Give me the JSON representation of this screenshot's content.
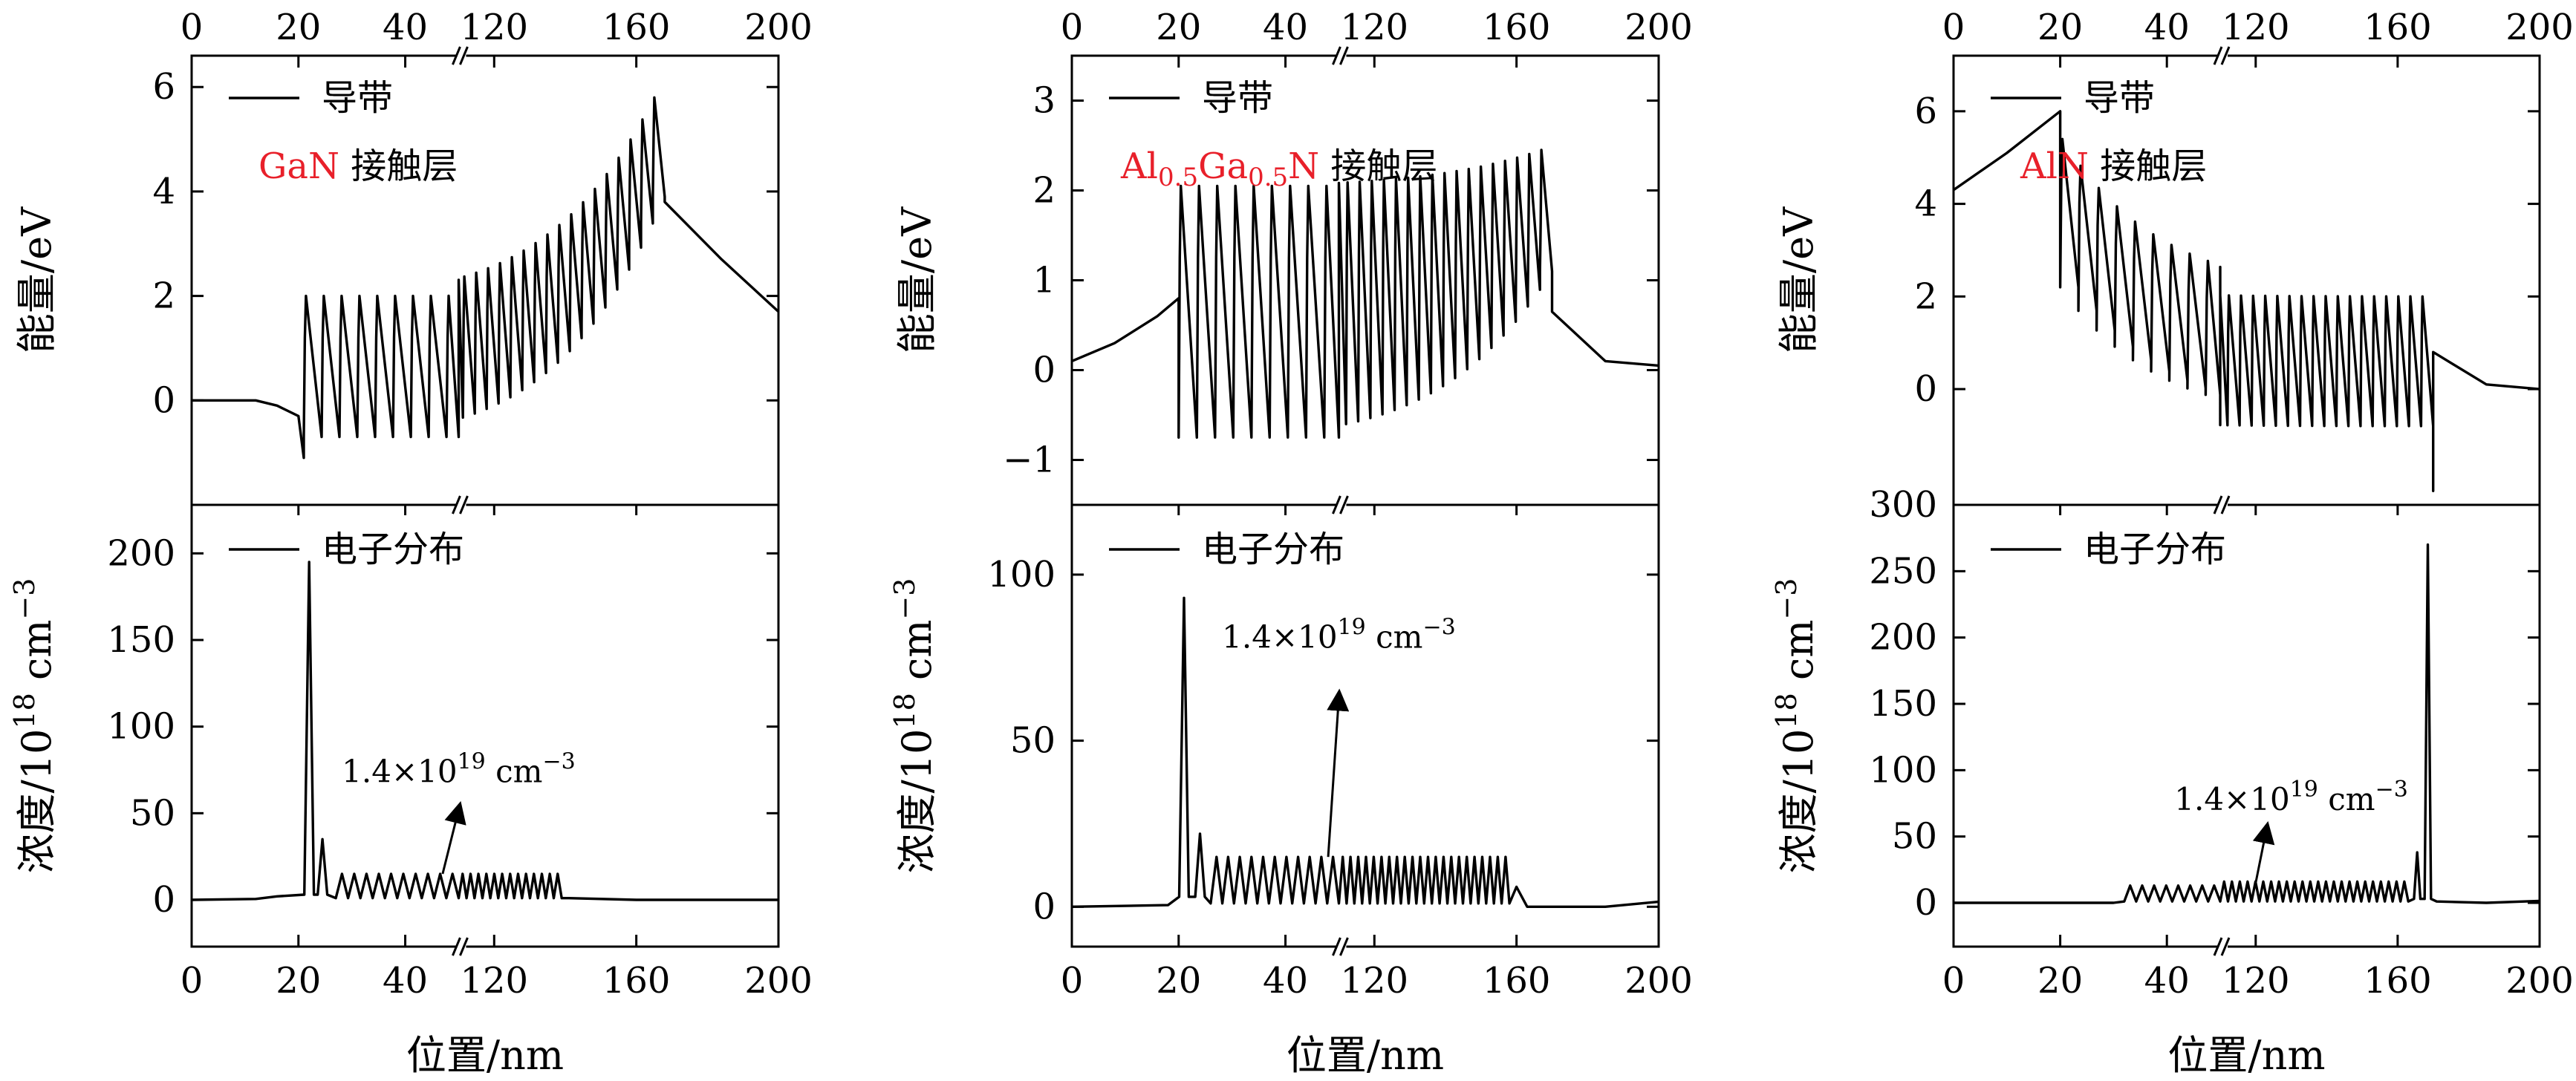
{
  "figure": {
    "x_axis_label": "位置/nm",
    "x_ticks": [
      {
        "label": "0",
        "value": 0
      },
      {
        "label": "20",
        "value": 20
      },
      {
        "label": "40",
        "value": 40
      },
      {
        "label": "120",
        "value": 120
      },
      {
        "label": "160",
        "value": 160
      },
      {
        "label": "200",
        "value": 200
      }
    ],
    "x_break_between": [
      50,
      110
    ],
    "top_ylabel": "能量/eV",
    "bottom_ylabel_main": "浓度/10",
    "bottom_ylabel_exp": "18",
    "bottom_ylabel_unit": " cm",
    "bottom_ylabel_unit_exp": "−3",
    "band_legend": "导带",
    "electron_legend": "电子分布",
    "annotation_main": "1.4×10",
    "annotation_exp": "19",
    "annotation_unit": " cm",
    "annotation_unit_exp": "−3"
  },
  "chart_data": [
    {
      "type": "line",
      "panel": "GaN contact layer",
      "label_red": "GaN",
      "label_black": " 接触层",
      "label_color": "#e8202a",
      "band": {
        "ylim": [
          -2.0,
          6.6
        ],
        "yticks": [
          0,
          2,
          4,
          6
        ],
        "points": [
          [
            0,
            0
          ],
          [
            12,
            0
          ],
          [
            16,
            -0.1
          ],
          [
            20,
            -0.3
          ],
          [
            21,
            -1.1
          ]
        ],
        "end_points": [
          [
            168,
            3.8
          ],
          [
            184,
            2.7
          ],
          [
            200,
            1.7
          ]
        ],
        "qw_start": 21,
        "qw_end": 168,
        "qw_count": 44,
        "qw_bottom": -0.7,
        "qw_top": 2.0,
        "qw_rise_end": 4.9,
        "qw_top_end": 5.8
      },
      "electrons": {
        "ylim": [
          -27,
          228
        ],
        "yticks": [
          0,
          50,
          100,
          150,
          200
        ],
        "baseline_points": [
          [
            0,
            0
          ],
          [
            12,
            0.5
          ],
          [
            16,
            2
          ]
        ],
        "peaks": [
          {
            "x": 22.0,
            "y": 195
          },
          {
            "x": 24.5,
            "y": 35
          }
        ],
        "wells_start": 27,
        "wells_end": 50,
        "wells_value": 15,
        "wells2_start": 110,
        "wells2_end": 139,
        "wells2_value": 15,
        "tail_points": [
          [
            141,
            1
          ],
          [
            160,
            0
          ],
          [
            200,
            0
          ]
        ],
        "arrow_value_x": 47,
        "arrow_value_y": 15,
        "arrow_tip": [
          50,
          52
        ],
        "annotation_at": [
          58,
          68
        ]
      }
    },
    {
      "type": "line",
      "panel": "Al0.5Ga0.5N contact layer",
      "label_red_parts": [
        "Al",
        "0.5",
        "Ga",
        "0.5",
        "N"
      ],
      "label_black": " 接触层",
      "label_color": "#e8202a",
      "band": {
        "ylim": [
          -1.5,
          3.5
        ],
        "yticks": [
          -1,
          0,
          1,
          2,
          3
        ],
        "points": [
          [
            0,
            0.1
          ],
          [
            8,
            0.3
          ],
          [
            16,
            0.6
          ],
          [
            20,
            0.8
          ]
        ],
        "end_points": [
          [
            170,
            0.65
          ],
          [
            185,
            0.1
          ],
          [
            200,
            0.05
          ]
        ],
        "qw_start": 20,
        "qw_end": 170,
        "qw_count": 44,
        "qw_bottom": -0.75,
        "qw_top": 2.05,
        "qw_rise_end": 2.1,
        "qw_top_end": 2.45
      },
      "electrons": {
        "ylim": [
          -12,
          121
        ],
        "yticks": [
          0,
          50,
          100
        ],
        "baseline_points": [
          [
            0,
            0
          ],
          [
            18,
            0.5
          ]
        ],
        "peaks": [
          {
            "x": 21.0,
            "y": 93
          },
          {
            "x": 24.0,
            "y": 22
          }
        ],
        "wells_start": 26,
        "wells_end": 50,
        "wells_value": 15,
        "wells2_start": 110,
        "wells2_end": 158,
        "wells2_value": 15,
        "tail_points": [
          [
            160,
            6
          ],
          [
            163,
            0
          ],
          [
            185,
            0
          ],
          [
            200,
            1.5
          ]
        ],
        "arrow_value_x": 48,
        "arrow_value_y": 15,
        "arrow_tip": [
          51,
          63
        ],
        "annotation_at": [
          58,
          78
        ]
      }
    },
    {
      "type": "line",
      "panel": "AlN contact layer",
      "label_red": "AlN",
      "label_black": " 接触层",
      "label_color": "#e8202a",
      "band": {
        "ylim": [
          -2.5,
          7.2
        ],
        "yticks": [
          0,
          2,
          4,
          6
        ],
        "points": [
          [
            0,
            4.3
          ],
          [
            10,
            5.1
          ],
          [
            20,
            6.0
          ]
        ],
        "end_points": [
          [
            170,
            0.8
          ],
          [
            185,
            0.1
          ],
          [
            200,
            0
          ]
        ],
        "qw_start": 20,
        "qw_end": 170,
        "qw_count": 44,
        "qw_bottom": -0.8,
        "qw_top": 2.0,
        "qw_rise_start": 4.2,
        "qw_top_start": 5.4,
        "qw_spike_end": -2.2
      },
      "electrons": {
        "ylim": [
          -33,
          300
        ],
        "yticks": [
          0,
          50,
          100,
          150,
          200,
          250,
          300
        ],
        "baseline_points": [
          [
            0,
            0
          ],
          [
            30,
            0
          ]
        ],
        "peaks": [
          {
            "x": 165.5,
            "y": 38
          },
          {
            "x": 168.5,
            "y": 270
          }
        ],
        "wells_start": 32,
        "wells_end": 50,
        "wells_value": 13,
        "wells2_start": 110,
        "wells2_end": 163,
        "wells2_value": 16,
        "tail_points": [
          [
            171,
            1
          ],
          [
            185,
            0
          ],
          [
            200,
            1.5
          ]
        ],
        "arrow_value_x": 120,
        "arrow_value_y": 15,
        "arrow_tip": [
          123,
          55
        ],
        "annotation_at": [
          130,
          70
        ]
      }
    }
  ]
}
